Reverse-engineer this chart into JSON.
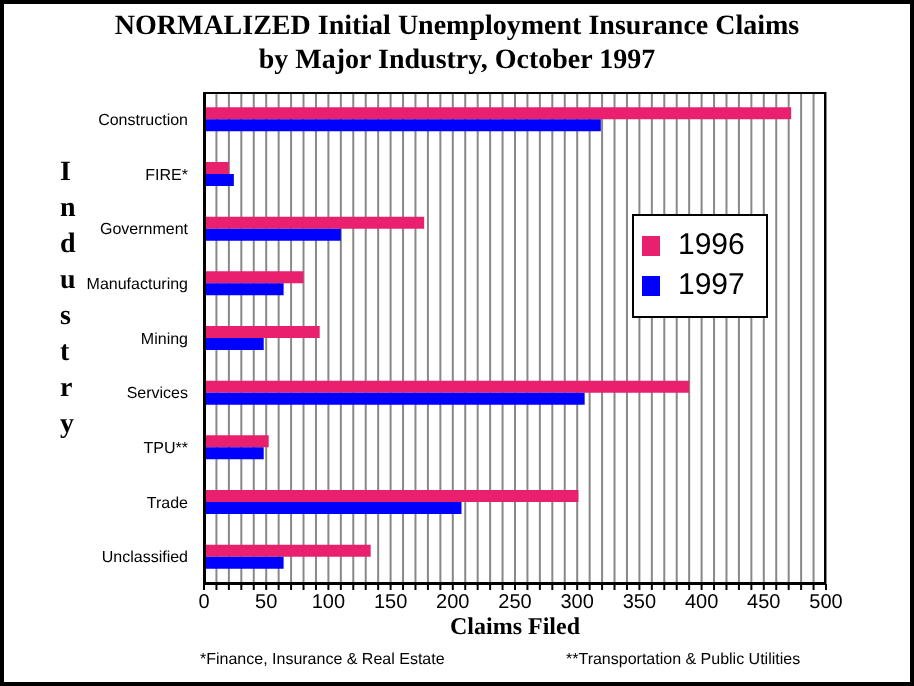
{
  "chart_data": {
    "type": "bar",
    "orientation": "horizontal",
    "title": "NORMALIZED Initial Unemployment Insurance Claims\nby Major Industry, October 1997",
    "xlabel": "Claims Filed",
    "ylabel": "Industry",
    "categories": [
      "Construction",
      "FIRE*",
      "Government",
      "Manufacturing",
      "Mining",
      "Services",
      "TPU**",
      "Trade",
      "Unclassified"
    ],
    "series": [
      {
        "name": "1996",
        "color": "#e8206e",
        "values": [
          472,
          20,
          177,
          80,
          93,
          390,
          52,
          301,
          134
        ]
      },
      {
        "name": "1997",
        "color": "#0000ff",
        "values": [
          319,
          24,
          110,
          64,
          48,
          306,
          48,
          207,
          64
        ]
      }
    ],
    "xlim": [
      0,
      500
    ],
    "xticks": [
      0,
      {
        "value": 10,
        "label": null
      },
      {
        "value": 20,
        "label": null
      },
      {
        "value": 30,
        "label": null
      },
      {
        "value": 40,
        "label": null
      },
      50,
      {
        "value": 60,
        "label": null
      },
      {
        "value": 70,
        "label": null
      },
      {
        "value": 80,
        "label": null
      },
      {
        "value": 90,
        "label": null
      },
      100,
      {
        "value": 110,
        "label": null
      },
      {
        "value": 120,
        "label": null
      },
      {
        "value": 130,
        "label": null
      },
      {
        "value": 140,
        "label": null
      },
      150,
      {
        "value": 160,
        "label": null
      },
      {
        "value": 170,
        "label": null
      },
      {
        "value": 180,
        "label": null
      },
      {
        "value": 190,
        "label": null
      },
      200,
      {
        "value": 210,
        "label": null
      },
      {
        "value": 220,
        "label": null
      },
      {
        "value": 230,
        "label": null
      },
      {
        "value": 240,
        "label": null
      },
      250,
      {
        "value": 260,
        "label": null
      },
      {
        "value": 270,
        "label": null
      },
      {
        "value": 280,
        "label": null
      },
      {
        "value": 290,
        "label": null
      },
      300,
      {
        "value": 310,
        "label": null
      },
      {
        "value": 320,
        "label": null
      },
      {
        "value": 330,
        "label": null
      },
      {
        "value": 340,
        "label": null
      },
      350,
      {
        "value": 360,
        "label": null
      },
      {
        "value": 370,
        "label": null
      },
      {
        "value": 380,
        "label": null
      },
      {
        "value": 390,
        "label": null
      },
      400,
      {
        "value": 410,
        "label": null
      },
      {
        "value": 420,
        "label": null
      },
      {
        "value": 430,
        "label": null
      },
      {
        "value": 440,
        "label": null
      },
      450,
      {
        "value": 460,
        "label": null
      },
      {
        "value": 470,
        "label": null
      },
      {
        "value": 480,
        "label": null
      },
      {
        "value": 490,
        "label": null
      },
      500
    ],
    "grid": "x",
    "legend": "right",
    "annotations": [
      "*Finance, Insurance & Real Estate",
      "**Transportation & Public Utilities"
    ]
  }
}
